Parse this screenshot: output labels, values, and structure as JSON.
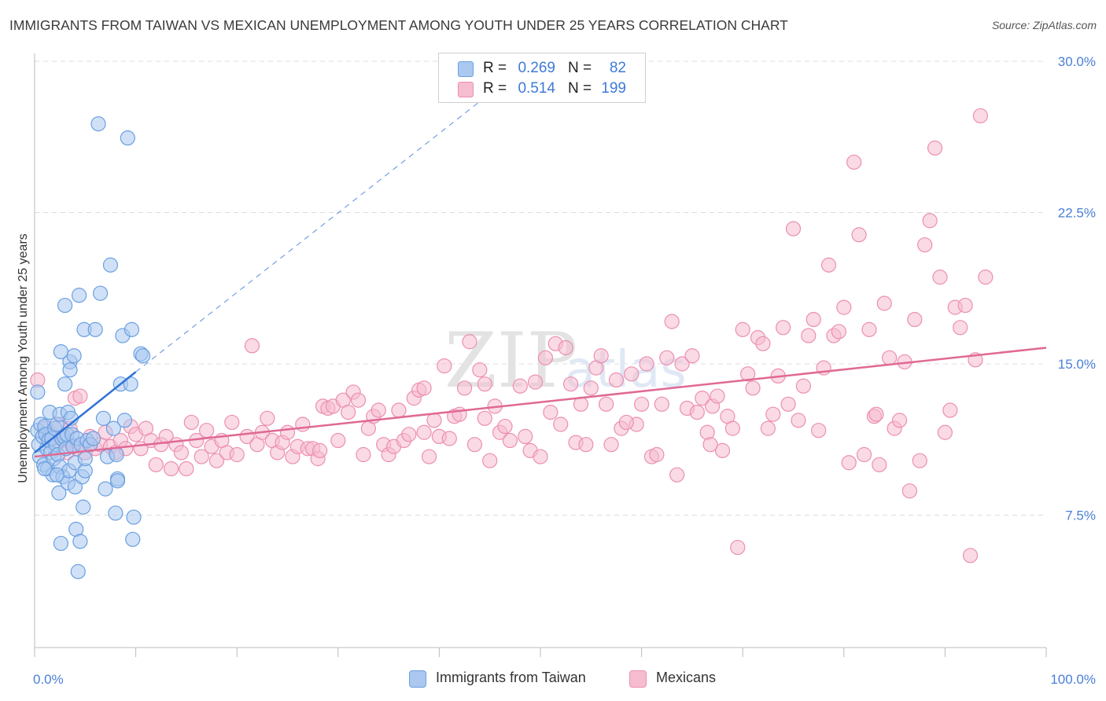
{
  "title": "IMMIGRANTS FROM TAIWAN VS MEXICAN UNEMPLOYMENT AMONG YOUTH UNDER 25 YEARS CORRELATION CHART",
  "source": "Source: ZipAtlas.com",
  "watermark": {
    "main": "ZIP",
    "sub": "atlas"
  },
  "stats": [
    {
      "r_label": "R =",
      "r_value": "0.269",
      "n_label": "N =",
      "n_value": "82"
    },
    {
      "r_label": "R =",
      "r_value": "0.514",
      "n_label": "N =",
      "n_value": "199"
    }
  ],
  "colors": {
    "taiwan_fill": "#aac8f0",
    "taiwan_stroke": "#6a9fe0",
    "taiwan_line": "#2f72d6",
    "mex_fill": "#f6bcd0",
    "mex_stroke": "#ec8fb1",
    "mex_line": "#e06994",
    "tick_label": "#4a7fd6",
    "grid": "#dddddd",
    "axis": "#bbbbbb"
  },
  "chart_data": {
    "type": "scatter",
    "xlabel": "",
    "ylabel": "Unemployment Among Youth under 25 years",
    "xlim": [
      0,
      100
    ],
    "ylim": [
      0,
      30
    ],
    "x_tick_labels": [
      {
        "value": 0,
        "label": "0.0%"
      },
      {
        "value": 100,
        "label": "100.0%"
      }
    ],
    "y_tick_labels": [
      {
        "value": 7.5,
        "label": "7.5%"
      },
      {
        "value": 15,
        "label": "15.0%"
      },
      {
        "value": 22.5,
        "label": "22.5%"
      },
      {
        "value": 30,
        "label": "30.0%"
      }
    ],
    "legend_position": "bottom",
    "series": [
      {
        "name": "Immigrants from Taiwan",
        "r": 0.269,
        "n": 82,
        "trend": {
          "solid": [
            [
              0,
              10.6
            ],
            [
              10,
              14.6
            ]
          ],
          "dashed": [
            [
              10,
              14.6
            ],
            [
              45,
              28.4
            ]
          ]
        },
        "points": [
          [
            0.3,
            13.6
          ],
          [
            0.3,
            11.7
          ],
          [
            0.4,
            11.0
          ],
          [
            0.5,
            10.4
          ],
          [
            0.6,
            12.0
          ],
          [
            0.8,
            11.4
          ],
          [
            0.9,
            10.0
          ],
          [
            1.0,
            11.9
          ],
          [
            1.1,
            11.5
          ],
          [
            1.2,
            10.8
          ],
          [
            1.3,
            9.8
          ],
          [
            1.4,
            11.2
          ],
          [
            1.5,
            12.6
          ],
          [
            1.6,
            10.6
          ],
          [
            1.7,
            11.3
          ],
          [
            1.8,
            9.5
          ],
          [
            1.9,
            10.3
          ],
          [
            2.0,
            11.8
          ],
          [
            2.1,
            11.0
          ],
          [
            2.2,
            12.0
          ],
          [
            2.3,
            10.5
          ],
          [
            2.4,
            8.6
          ],
          [
            2.5,
            12.5
          ],
          [
            2.5,
            9.9
          ],
          [
            2.6,
            6.1
          ],
          [
            2.6,
            15.6
          ],
          [
            2.7,
            11.3
          ],
          [
            2.8,
            9.4
          ],
          [
            2.9,
            11.4
          ],
          [
            3.0,
            14.0
          ],
          [
            3.0,
            17.9
          ],
          [
            3.1,
            10.8
          ],
          [
            3.2,
            11.5
          ],
          [
            3.3,
            12.6
          ],
          [
            3.3,
            9.1
          ],
          [
            3.4,
            9.7
          ],
          [
            3.5,
            15.1
          ],
          [
            3.5,
            14.7
          ],
          [
            3.6,
            12.3
          ],
          [
            3.7,
            11.5
          ],
          [
            3.8,
            10.9
          ],
          [
            3.9,
            15.4
          ],
          [
            4.0,
            10.1
          ],
          [
            4.0,
            8.9
          ],
          [
            4.1,
            6.8
          ],
          [
            4.2,
            11.3
          ],
          [
            4.3,
            4.7
          ],
          [
            4.4,
            18.4
          ],
          [
            4.5,
            6.2
          ],
          [
            4.6,
            11.0
          ],
          [
            4.7,
            9.4
          ],
          [
            4.8,
            7.9
          ],
          [
            4.9,
            16.7
          ],
          [
            5.0,
            9.7
          ],
          [
            5.0,
            10.3
          ],
          [
            5.2,
            11.2
          ],
          [
            5.5,
            11.0
          ],
          [
            5.8,
            11.3
          ],
          [
            6.0,
            16.7
          ],
          [
            6.3,
            26.9
          ],
          [
            6.5,
            18.5
          ],
          [
            6.8,
            12.3
          ],
          [
            7.0,
            8.8
          ],
          [
            7.2,
            10.4
          ],
          [
            7.5,
            19.9
          ],
          [
            7.8,
            11.8
          ],
          [
            8.0,
            7.6
          ],
          [
            8.1,
            10.5
          ],
          [
            8.2,
            9.3
          ],
          [
            8.2,
            9.2
          ],
          [
            8.5,
            14.0
          ],
          [
            8.7,
            16.4
          ],
          [
            8.9,
            12.2
          ],
          [
            9.2,
            26.2
          ],
          [
            9.5,
            14.0
          ],
          [
            9.6,
            16.7
          ],
          [
            9.7,
            6.3
          ],
          [
            9.8,
            7.4
          ],
          [
            10.5,
            15.5
          ],
          [
            10.7,
            15.4
          ],
          [
            1.0,
            9.8
          ],
          [
            2.2,
            9.5
          ]
        ]
      },
      {
        "name": "Mexicans",
        "r": 0.514,
        "n": 199,
        "trend": {
          "solid": [
            [
              0,
              10.4
            ],
            [
              100,
              15.8
            ]
          ]
        },
        "points": [
          [
            0.3,
            14.2
          ],
          [
            1.0,
            11.8
          ],
          [
            1.5,
            11.5
          ],
          [
            2.0,
            10.8
          ],
          [
            2.5,
            12.0
          ],
          [
            2.8,
            11.2
          ],
          [
            3.2,
            10.6
          ],
          [
            3.5,
            11.8
          ],
          [
            3.8,
            11.0
          ],
          [
            4.0,
            13.3
          ],
          [
            4.2,
            10.8
          ],
          [
            4.5,
            13.4
          ],
          [
            5.0,
            10.6
          ],
          [
            5.5,
            11.4
          ],
          [
            6.0,
            10.8
          ],
          [
            6.5,
            11.0
          ],
          [
            7.0,
            11.6
          ],
          [
            7.5,
            10.9
          ],
          [
            8.0,
            10.6
          ],
          [
            8.5,
            11.2
          ],
          [
            9.0,
            10.8
          ],
          [
            9.5,
            11.9
          ],
          [
            10.0,
            11.5
          ],
          [
            10.5,
            10.8
          ],
          [
            11.0,
            11.8
          ],
          [
            11.5,
            11.2
          ],
          [
            12.0,
            10.0
          ],
          [
            12.5,
            11.0
          ],
          [
            13.0,
            11.4
          ],
          [
            13.5,
            9.8
          ],
          [
            14.0,
            11.0
          ],
          [
            14.5,
            10.6
          ],
          [
            15.0,
            9.8
          ],
          [
            15.5,
            12.1
          ],
          [
            16.0,
            11.2
          ],
          [
            16.5,
            10.4
          ],
          [
            17.0,
            11.7
          ],
          [
            17.5,
            10.9
          ],
          [
            18.0,
            10.2
          ],
          [
            18.5,
            11.2
          ],
          [
            19.0,
            10.6
          ],
          [
            19.5,
            12.1
          ],
          [
            20.0,
            10.5
          ],
          [
            21.0,
            11.4
          ],
          [
            21.5,
            15.9
          ],
          [
            22.0,
            11.0
          ],
          [
            22.5,
            11.6
          ],
          [
            23.0,
            12.3
          ],
          [
            23.5,
            11.2
          ],
          [
            24.0,
            10.6
          ],
          [
            24.5,
            11.1
          ],
          [
            25.0,
            11.6
          ],
          [
            25.5,
            10.4
          ],
          [
            26.0,
            10.9
          ],
          [
            26.5,
            12.0
          ],
          [
            27.0,
            10.8
          ],
          [
            27.5,
            10.8
          ],
          [
            28.0,
            10.3
          ],
          [
            28.5,
            12.9
          ],
          [
            29.0,
            12.8
          ],
          [
            29.5,
            12.9
          ],
          [
            30.0,
            11.2
          ],
          [
            30.5,
            13.2
          ],
          [
            31.0,
            12.6
          ],
          [
            31.5,
            13.6
          ],
          [
            32.0,
            13.2
          ],
          [
            32.5,
            10.5
          ],
          [
            33.0,
            11.8
          ],
          [
            33.5,
            12.4
          ],
          [
            34.0,
            12.7
          ],
          [
            34.5,
            11.0
          ],
          [
            35.0,
            10.5
          ],
          [
            35.5,
            10.9
          ],
          [
            36.0,
            12.7
          ],
          [
            36.5,
            11.2
          ],
          [
            37.0,
            11.5
          ],
          [
            37.5,
            13.3
          ],
          [
            38.0,
            13.7
          ],
          [
            38.5,
            13.8
          ],
          [
            39.0,
            10.4
          ],
          [
            39.5,
            12.2
          ],
          [
            40.0,
            11.4
          ],
          [
            40.5,
            14.9
          ],
          [
            41.0,
            11.3
          ],
          [
            41.5,
            12.4
          ],
          [
            42.0,
            12.5
          ],
          [
            42.5,
            13.8
          ],
          [
            43.0,
            16.1
          ],
          [
            43.5,
            11.0
          ],
          [
            44.0,
            14.7
          ],
          [
            44.5,
            14.0
          ],
          [
            45.0,
            10.2
          ],
          [
            45.5,
            12.9
          ],
          [
            46.0,
            11.6
          ],
          [
            46.5,
            11.9
          ],
          [
            47.0,
            11.2
          ],
          [
            48.0,
            13.9
          ],
          [
            48.5,
            11.4
          ],
          [
            49.0,
            10.7
          ],
          [
            49.5,
            14.1
          ],
          [
            50.0,
            10.4
          ],
          [
            50.5,
            15.3
          ],
          [
            51.0,
            12.6
          ],
          [
            51.5,
            16.0
          ],
          [
            52.0,
            12.0
          ],
          [
            52.5,
            15.8
          ],
          [
            53.0,
            14.0
          ],
          [
            53.5,
            11.1
          ],
          [
            54.0,
            13.0
          ],
          [
            54.5,
            11.0
          ],
          [
            55.0,
            13.8
          ],
          [
            55.5,
            14.8
          ],
          [
            56.0,
            15.4
          ],
          [
            56.5,
            13.0
          ],
          [
            57.0,
            11.0
          ],
          [
            57.5,
            14.2
          ],
          [
            58.0,
            11.8
          ],
          [
            59.0,
            14.5
          ],
          [
            59.5,
            12.0
          ],
          [
            60.0,
            13.0
          ],
          [
            60.5,
            15.0
          ],
          [
            61.0,
            10.4
          ],
          [
            61.5,
            10.5
          ],
          [
            62.0,
            13.0
          ],
          [
            62.5,
            15.3
          ],
          [
            63.0,
            17.1
          ],
          [
            63.5,
            9.5
          ],
          [
            64.0,
            15.0
          ],
          [
            64.5,
            12.8
          ],
          [
            65.0,
            15.4
          ],
          [
            65.5,
            12.6
          ],
          [
            66.0,
            13.3
          ],
          [
            66.5,
            11.6
          ],
          [
            67.0,
            12.9
          ],
          [
            67.5,
            13.4
          ],
          [
            68.0,
            10.7
          ],
          [
            68.5,
            12.4
          ],
          [
            69.0,
            11.8
          ],
          [
            69.5,
            5.9
          ],
          [
            70.0,
            16.7
          ],
          [
            70.5,
            14.5
          ],
          [
            71.0,
            13.8
          ],
          [
            71.5,
            16.3
          ],
          [
            72.0,
            16.0
          ],
          [
            72.5,
            11.8
          ],
          [
            73.0,
            12.5
          ],
          [
            73.5,
            14.4
          ],
          [
            74.0,
            16.8
          ],
          [
            74.5,
            13.0
          ],
          [
            75.0,
            21.7
          ],
          [
            75.5,
            12.2
          ],
          [
            76.0,
            13.9
          ],
          [
            76.5,
            16.4
          ],
          [
            77.0,
            17.2
          ],
          [
            77.5,
            11.7
          ],
          [
            78.0,
            14.8
          ],
          [
            78.5,
            19.9
          ],
          [
            79.0,
            16.4
          ],
          [
            79.5,
            16.6
          ],
          [
            80.0,
            17.8
          ],
          [
            80.5,
            10.1
          ],
          [
            81.0,
            25.0
          ],
          [
            81.5,
            21.4
          ],
          [
            82.0,
            10.5
          ],
          [
            82.5,
            16.7
          ],
          [
            83.0,
            12.4
          ],
          [
            83.5,
            10.0
          ],
          [
            84.0,
            18.0
          ],
          [
            84.5,
            15.3
          ],
          [
            85.0,
            11.8
          ],
          [
            85.5,
            12.2
          ],
          [
            86.0,
            15.1
          ],
          [
            86.5,
            8.7
          ],
          [
            87.0,
            17.2
          ],
          [
            87.5,
            10.2
          ],
          [
            88.0,
            20.9
          ],
          [
            88.5,
            22.1
          ],
          [
            89.0,
            25.7
          ],
          [
            89.5,
            19.3
          ],
          [
            90.0,
            11.6
          ],
          [
            90.5,
            12.7
          ],
          [
            91.0,
            17.8
          ],
          [
            91.5,
            16.8
          ],
          [
            92.0,
            17.9
          ],
          [
            92.5,
            5.5
          ],
          [
            93.0,
            15.2
          ],
          [
            93.5,
            27.3
          ],
          [
            94.0,
            19.3
          ],
          [
            44.5,
            12.3
          ],
          [
            38.5,
            11.6
          ],
          [
            28.2,
            10.7
          ],
          [
            58.5,
            12.1
          ],
          [
            66.8,
            11.0
          ],
          [
            83.2,
            12.5
          ]
        ]
      }
    ]
  }
}
